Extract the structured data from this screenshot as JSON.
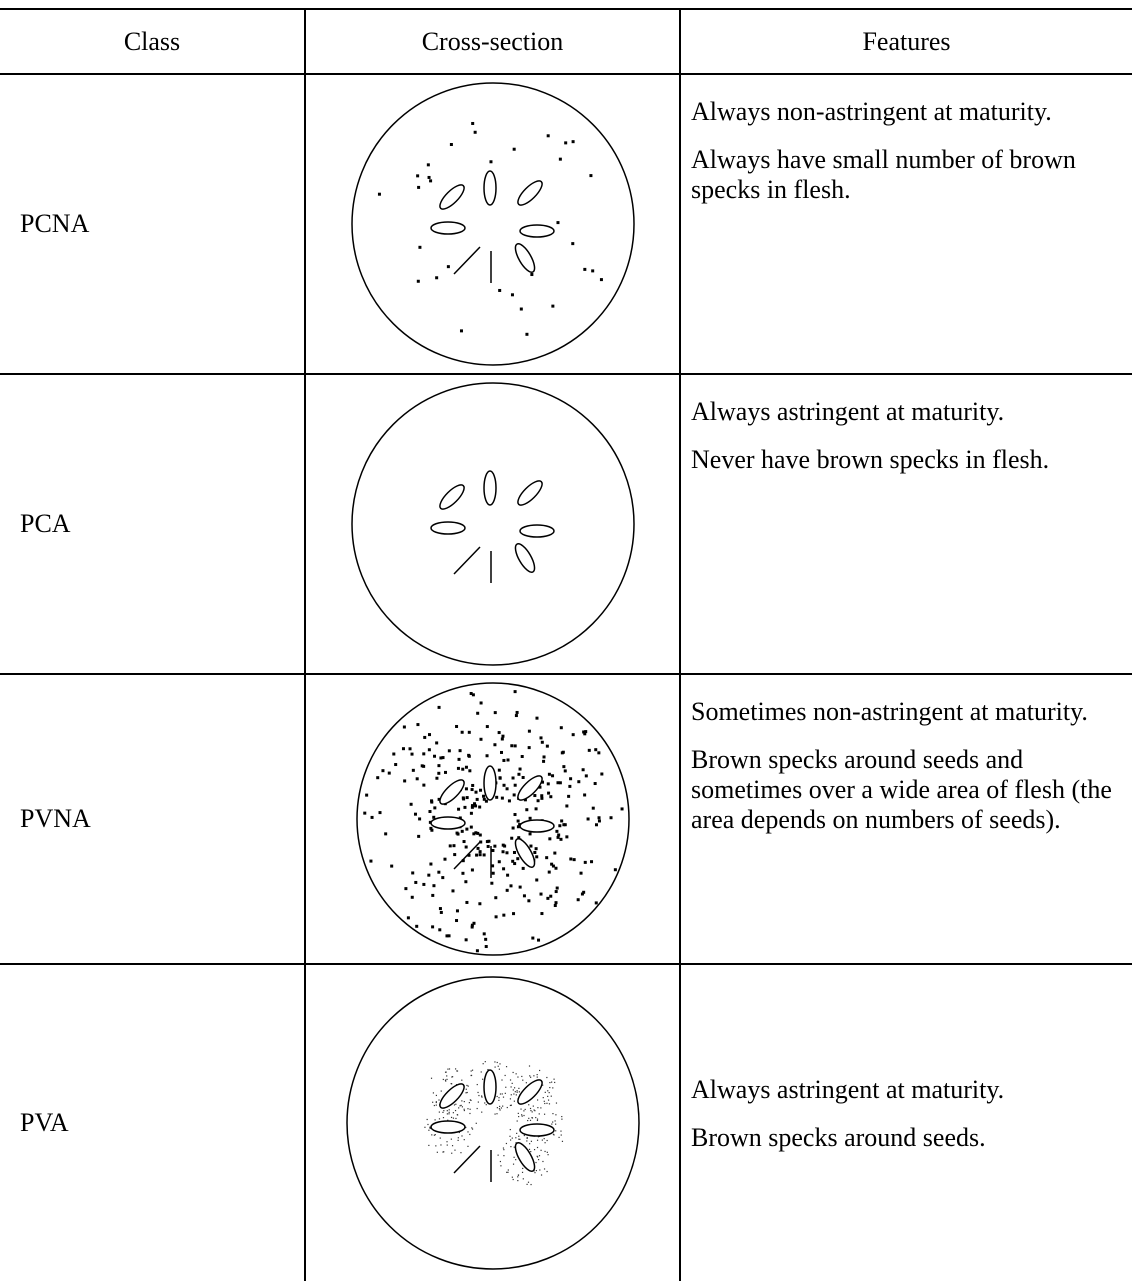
{
  "table": {
    "header": [
      "Class",
      "Cross-section",
      "Features"
    ],
    "rows": [
      {
        "class": "PCNA",
        "features": [
          "Always non-astringent at maturity.",
          "Always have small number of brown specks in flesh."
        ]
      },
      {
        "class": "PCA",
        "features": [
          "Always astringent at maturity.",
          "Never have brown specks in flesh."
        ]
      },
      {
        "class": "PVNA",
        "features": [
          "Sometimes non-astringent at maturity.",
          "Brown specks around seeds and sometimes over a wide area of flesh (the area depends on numbers of seeds)."
        ]
      },
      {
        "class": "PVA",
        "features": [
          "Always astringent at maturity.",
          "Brown specks around seeds."
        ]
      }
    ]
  }
}
